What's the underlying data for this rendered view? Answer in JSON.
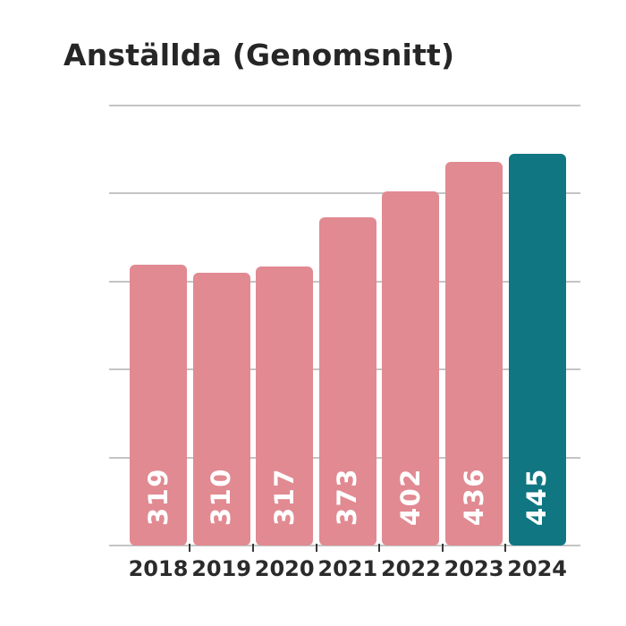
{
  "title": "Anställda (Genomsnitt)",
  "colors": {
    "background": "#ffffff",
    "bar_default": "#E18A92",
    "bar_highlight": "#0F7682",
    "title_text": "#262626",
    "axis_label_text": "#2b2b2b",
    "value_label_text": "#ffffff",
    "gridline": "#c4c4c4",
    "tick": "#3a3a3a"
  },
  "chart_data": {
    "type": "bar",
    "title": "Anställda (Genomsnitt)",
    "categories": [
      "2018",
      "2019",
      "2020",
      "2021",
      "2022",
      "2023",
      "2024"
    ],
    "values": [
      319,
      310,
      317,
      373,
      402,
      436,
      445
    ],
    "value_labels": [
      "319",
      "310",
      "317",
      "373",
      "402",
      "436",
      "445"
    ],
    "highlighted_category": "2024",
    "value_label_rotation_deg": -90,
    "xlabel": "",
    "ylabel": "",
    "ylim": [
      0,
      500
    ],
    "grid_step": 100,
    "grid": true,
    "y_tick_labels_shown": false,
    "legend": false
  }
}
